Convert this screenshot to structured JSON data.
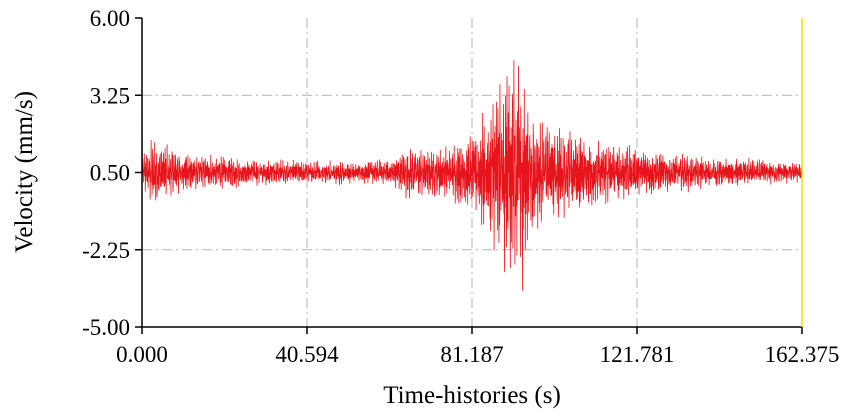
{
  "chart_data": {
    "type": "line",
    "title": "",
    "xlabel": "Time-histories (s)",
    "ylabel": "Velocity (mm/s)",
    "xlim": [
      0,
      162.375
    ],
    "ylim": [
      -5.0,
      6.0
    ],
    "x_ticks": [
      "0.000",
      "40.594",
      "81.187",
      "121.781",
      "162.375"
    ],
    "y_ticks": [
      "6.00",
      "3.25",
      "0.50",
      "-2.25",
      "-5.00"
    ],
    "grid": true,
    "legend": "none",
    "series": [
      {
        "color": "#e8141b",
        "baseline": 0.5,
        "duration": 162.375,
        "envelope": {
          "t": [
            0,
            3,
            6,
            10,
            20,
            30,
            40,
            45,
            52,
            56,
            60,
            63,
            65,
            68,
            72,
            76,
            80,
            82,
            84,
            86,
            88,
            90,
            91,
            92,
            93,
            95,
            97,
            100,
            104,
            108,
            112,
            116,
            120,
            125,
            130,
            140,
            150,
            158,
            162.375
          ],
          "amp": [
            0.5,
            1.1,
            0.9,
            0.6,
            0.5,
            0.4,
            0.38,
            0.36,
            0.35,
            0.4,
            0.42,
            0.55,
            0.85,
            0.7,
            0.75,
            0.85,
            1.0,
            1.2,
            1.8,
            2.2,
            2.7,
            3.2,
            3.6,
            3.2,
            2.8,
            2.4,
            1.7,
            1.4,
            1.3,
            1.2,
            1.05,
            0.95,
            0.8,
            0.7,
            0.6,
            0.5,
            0.4,
            0.35,
            0.3
          ]
        },
        "peaks": [
          {
            "t": 92.6,
            "value": 4.3
          },
          {
            "t": 93.6,
            "value": -3.7
          },
          {
            "t": 91.2,
            "value": 3.3
          },
          {
            "t": 90.6,
            "value": -2.9
          }
        ]
      }
    ]
  }
}
